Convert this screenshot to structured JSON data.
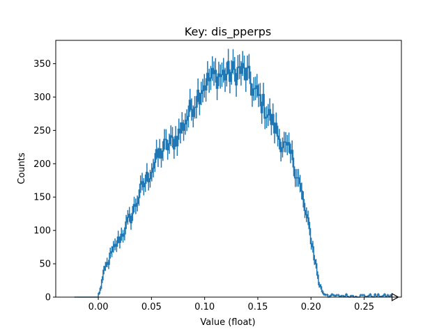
{
  "chart_data": {
    "type": "histogram",
    "title": "Key: dis_pperps",
    "xlabel": "Value (float)",
    "ylabel": "Counts",
    "xlim": [
      -0.04,
      0.285
    ],
    "ylim": [
      0,
      385
    ],
    "xticks": [
      0.0,
      0.05,
      0.1,
      0.15,
      0.2,
      0.25
    ],
    "xtick_labels": [
      "0.00",
      "0.05",
      "0.10",
      "0.15",
      "0.20",
      "0.25"
    ],
    "yticks": [
      0,
      50,
      100,
      150,
      200,
      250,
      300,
      350
    ],
    "ytick_labels": [
      "0",
      "50",
      "100",
      "150",
      "200",
      "250",
      "300",
      "350"
    ],
    "grid": false,
    "color": "#1f77b4",
    "bins": {
      "start": -0.0225,
      "width": 0.0015,
      "count": 200
    },
    "control_points": [
      [
        -0.0225,
        0
      ],
      [
        0.0,
        0
      ],
      [
        0.003,
        20
      ],
      [
        0.007,
        45
      ],
      [
        0.012,
        62
      ],
      [
        0.018,
        82
      ],
      [
        0.025,
        102
      ],
      [
        0.032,
        125
      ],
      [
        0.038,
        152
      ],
      [
        0.044,
        172
      ],
      [
        0.05,
        192
      ],
      [
        0.056,
        210
      ],
      [
        0.062,
        224
      ],
      [
        0.068,
        230
      ],
      [
        0.074,
        240
      ],
      [
        0.08,
        258
      ],
      [
        0.086,
        278
      ],
      [
        0.092,
        298
      ],
      [
        0.098,
        318
      ],
      [
        0.104,
        325
      ],
      [
        0.11,
        332
      ],
      [
        0.116,
        333
      ],
      [
        0.122,
        335
      ],
      [
        0.128,
        337
      ],
      [
        0.134,
        340
      ],
      [
        0.14,
        333
      ],
      [
        0.146,
        310
      ],
      [
        0.152,
        297
      ],
      [
        0.158,
        280
      ],
      [
        0.164,
        262
      ],
      [
        0.17,
        240
      ],
      [
        0.176,
        222
      ],
      [
        0.182,
        210
      ],
      [
        0.188,
        180
      ],
      [
        0.194,
        132
      ],
      [
        0.2,
        90
      ],
      [
        0.205,
        45
      ],
      [
        0.208,
        18
      ],
      [
        0.212,
        5
      ],
      [
        0.22,
        3
      ],
      [
        0.24,
        3
      ],
      [
        0.26,
        1
      ],
      [
        0.278,
        1
      ]
    ],
    "marker": "right-pointing triangle at end of x-axis"
  }
}
